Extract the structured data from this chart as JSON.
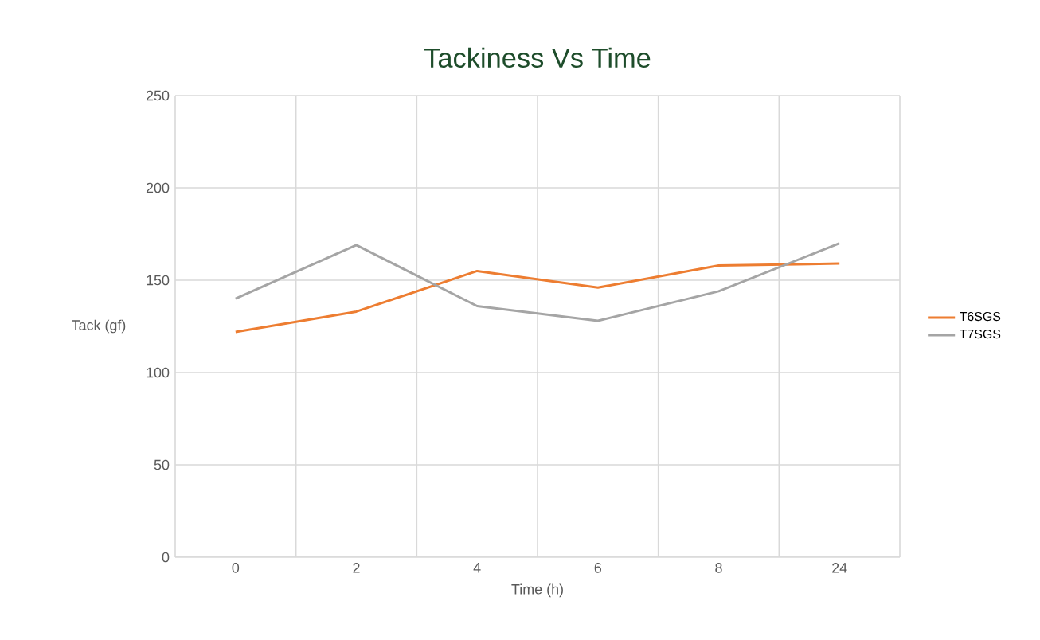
{
  "chart_data": {
    "type": "line",
    "title": "Tackiness Vs Time",
    "xlabel": "Time (h)",
    "ylabel": "Tack (gf)",
    "categories": [
      "0",
      "2",
      "4",
      "6",
      "8",
      "24"
    ],
    "series": [
      {
        "name": "T6SGS",
        "color": "#ed7d31",
        "values": [
          122,
          133,
          155,
          146,
          158,
          159
        ]
      },
      {
        "name": "T7SGS",
        "color": "#a5a5a5",
        "values": [
          140,
          169,
          136,
          128,
          144,
          170
        ]
      }
    ],
    "ylim": [
      0,
      250
    ],
    "yticks": [
      0,
      50,
      100,
      150,
      200,
      250
    ],
    "grid": true,
    "legend": "right",
    "marker": "none",
    "line_style": "solid"
  }
}
